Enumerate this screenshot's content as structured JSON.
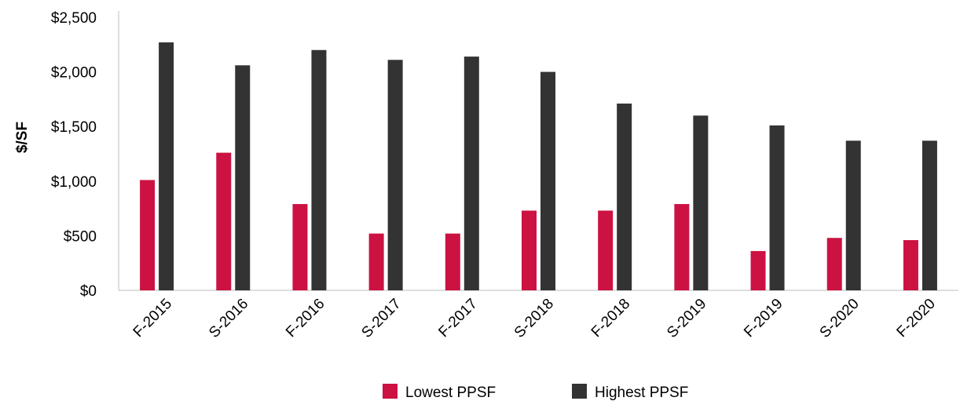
{
  "chart_data": {
    "type": "bar",
    "ylabel": "$/SF",
    "xlabel": "",
    "ylim": [
      0,
      2500
    ],
    "yticks": [
      0,
      500,
      1000,
      1500,
      2000,
      2500
    ],
    "ytick_labels": [
      "$0",
      "$500",
      "$1,000",
      "$1,500",
      "$2,000",
      "$2,500"
    ],
    "categories": [
      "F-2015",
      "S-2016",
      "F-2016",
      "S-2017",
      "F-2017",
      "S-2018",
      "F-2018",
      "S-2019",
      "F-2019",
      "S-2020",
      "F-2020"
    ],
    "series": [
      {
        "name": "Lowest PPSF",
        "color": "#cc1242",
        "values": [
          1010,
          1260,
          790,
          520,
          520,
          730,
          730,
          790,
          360,
          480,
          460
        ]
      },
      {
        "name": "Highest PPSF",
        "color": "#333333",
        "values": [
          2270,
          2060,
          2200,
          2110,
          2140,
          2000,
          1710,
          1600,
          1510,
          1370,
          1370
        ]
      }
    ],
    "grid": false,
    "legend": "bottom"
  }
}
